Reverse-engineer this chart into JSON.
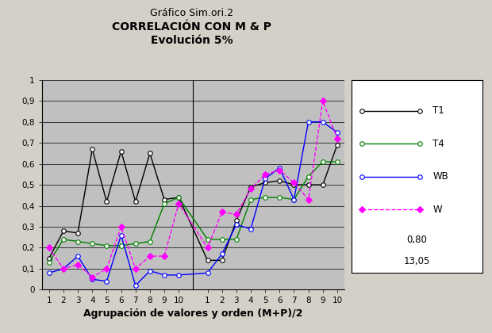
{
  "title_line1": "Gráfico Sim.ori.2",
  "title_line2": "CORRELACIÓN CON M & P",
  "title_line3": "Evolución 5%",
  "xlabel": "Agrupación de valores y orden (M+P)/2",
  "ylim": [
    0,
    1.0
  ],
  "legend_extra": [
    "0,80",
    "13,05"
  ],
  "T1_grp1": [
    0.15,
    0.28,
    0.27,
    0.67,
    0.42,
    0.66,
    0.42,
    0.65,
    0.43,
    0.44
  ],
  "T1_grp2": [
    0.14,
    0.14,
    0.33,
    0.49,
    0.51,
    0.52,
    0.5,
    0.5,
    0.5,
    0.69
  ],
  "T4_grp1": [
    0.13,
    0.24,
    0.23,
    0.22,
    0.21,
    0.21,
    0.22,
    0.23,
    0.41,
    0.44
  ],
  "T4_grp2": [
    0.24,
    0.24,
    0.24,
    0.43,
    0.44,
    0.44,
    0.43,
    0.54,
    0.61,
    0.61
  ],
  "WB_grp1": [
    0.08,
    0.1,
    0.16,
    0.05,
    0.04,
    0.26,
    0.02,
    0.09,
    0.07,
    0.07
  ],
  "WB_grp2": [
    0.08,
    0.17,
    0.31,
    0.29,
    0.53,
    0.58,
    0.43,
    0.8,
    0.8,
    0.75
  ],
  "W_grp1": [
    0.2,
    0.1,
    0.12,
    0.06,
    0.1,
    0.3,
    0.1,
    0.16,
    0.16,
    0.41
  ],
  "W_grp2": [
    0.2,
    0.37,
    0.36,
    0.48,
    0.55,
    0.57,
    0.51,
    0.43,
    0.9,
    0.72
  ],
  "bg_color": "#c0c0c0",
  "fig_bg_color": "#d4d0c8",
  "T1_color": "#000000",
  "T4_color": "#008000",
  "WB_color": "#0000ff",
  "W_color": "#ff00ff"
}
